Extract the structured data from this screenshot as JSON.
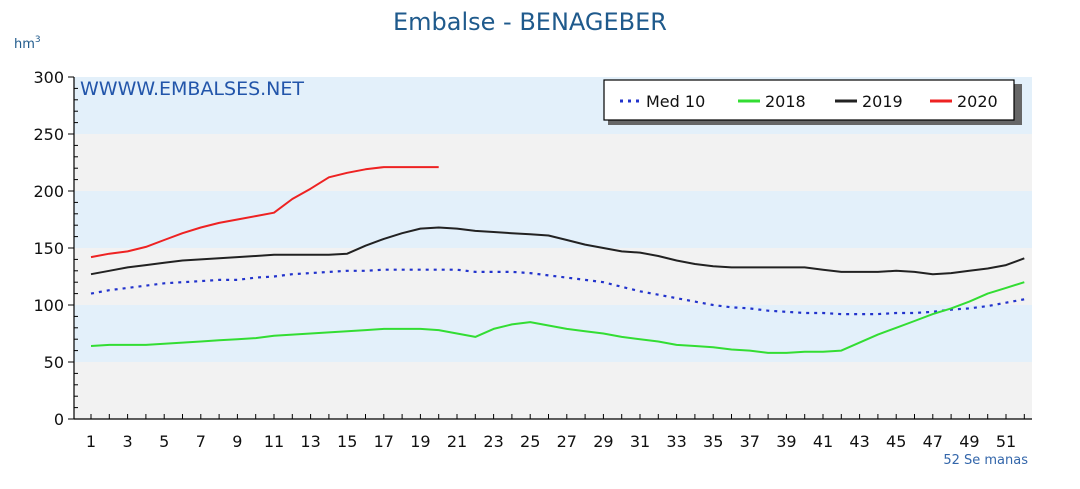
{
  "header": {
    "title": "Embalse - BENAGEBER",
    "unit_base": "hm",
    "unit_exp": "3"
  },
  "watermark": "WWWW.EMBALSES.NET",
  "weeks_label": "52 Se manas",
  "colors": {
    "band_blue": "#e3f0fa",
    "band_gray": "#f2f2f2",
    "med10": "#2233cc",
    "s2018": "#33dd33",
    "s2019": "#222222",
    "s2020": "#ee2222"
  },
  "chart_data": {
    "type": "line",
    "title": "Embalse - BENAGEBER",
    "ylabel": "hm3",
    "xlabel": "52 Se manas",
    "xlim": [
      1,
      52
    ],
    "ylim": [
      0,
      300
    ],
    "yticks": [
      0,
      50,
      100,
      150,
      200,
      250,
      300
    ],
    "xticks": [
      1,
      3,
      5,
      7,
      9,
      11,
      13,
      15,
      17,
      19,
      21,
      23,
      25,
      27,
      29,
      31,
      33,
      35,
      37,
      39,
      41,
      43,
      45,
      47,
      49,
      51
    ],
    "grid": "horizontal bands",
    "legend": {
      "position": "top-right",
      "entries": [
        "Med 10",
        "2018",
        "2019",
        "2020"
      ]
    },
    "series": [
      {
        "name": "Med 10",
        "style": "dotted",
        "color": "#2233cc",
        "x": [
          1,
          2,
          3,
          4,
          5,
          6,
          7,
          8,
          9,
          10,
          11,
          12,
          13,
          14,
          15,
          16,
          17,
          18,
          19,
          20,
          21,
          22,
          23,
          24,
          25,
          26,
          27,
          28,
          29,
          30,
          31,
          32,
          33,
          34,
          35,
          36,
          37,
          38,
          39,
          40,
          41,
          42,
          43,
          44,
          45,
          46,
          47,
          48,
          49,
          50,
          51,
          52
        ],
        "values": [
          110,
          113,
          115,
          117,
          119,
          120,
          121,
          122,
          122,
          124,
          125,
          127,
          128,
          129,
          130,
          130,
          131,
          131,
          131,
          131,
          131,
          129,
          129,
          129,
          128,
          126,
          124,
          122,
          120,
          116,
          112,
          109,
          106,
          103,
          100,
          98,
          97,
          95,
          94,
          93,
          93,
          92,
          92,
          92,
          93,
          93,
          94,
          96,
          97,
          99,
          102,
          105
        ]
      },
      {
        "name": "2018",
        "style": "solid",
        "color": "#33dd33",
        "x": [
          1,
          2,
          3,
          4,
          5,
          6,
          7,
          8,
          9,
          10,
          11,
          12,
          13,
          14,
          15,
          16,
          17,
          18,
          19,
          20,
          21,
          22,
          23,
          24,
          25,
          26,
          27,
          28,
          29,
          30,
          31,
          32,
          33,
          34,
          35,
          36,
          37,
          38,
          39,
          40,
          41,
          42,
          43,
          44,
          45,
          46,
          47,
          48,
          49,
          50,
          51,
          52
        ],
        "values": [
          64,
          65,
          65,
          65,
          66,
          67,
          68,
          69,
          70,
          71,
          73,
          74,
          75,
          76,
          77,
          78,
          79,
          79,
          79,
          78,
          75,
          72,
          79,
          83,
          85,
          82,
          79,
          77,
          75,
          72,
          70,
          68,
          65,
          64,
          63,
          61,
          60,
          58,
          58,
          59,
          59,
          60,
          67,
          74,
          80,
          86,
          92,
          97,
          103,
          110,
          115,
          120
        ]
      },
      {
        "name": "2019",
        "style": "solid",
        "color": "#222222",
        "x": [
          1,
          2,
          3,
          4,
          5,
          6,
          7,
          8,
          9,
          10,
          11,
          12,
          13,
          14,
          15,
          16,
          17,
          18,
          19,
          20,
          21,
          22,
          23,
          24,
          25,
          26,
          27,
          28,
          29,
          30,
          31,
          32,
          33,
          34,
          35,
          36,
          37,
          38,
          39,
          40,
          41,
          42,
          43,
          44,
          45,
          46,
          47,
          48,
          49,
          50,
          51,
          52
        ],
        "values": [
          127,
          130,
          133,
          135,
          137,
          139,
          140,
          141,
          142,
          143,
          144,
          144,
          144,
          144,
          145,
          152,
          158,
          163,
          167,
          168,
          167,
          165,
          164,
          163,
          162,
          161,
          157,
          153,
          150,
          147,
          146,
          143,
          139,
          136,
          134,
          133,
          133,
          133,
          133,
          133,
          131,
          129,
          129,
          129,
          130,
          129,
          127,
          128,
          130,
          132,
          135,
          141
        ]
      },
      {
        "name": "2020",
        "style": "solid",
        "color": "#ee2222",
        "x": [
          1,
          2,
          3,
          4,
          5,
          6,
          7,
          8,
          9,
          10,
          11,
          12,
          13,
          14,
          15,
          16,
          17,
          18,
          19,
          20
        ],
        "values": [
          142,
          145,
          147,
          151,
          157,
          163,
          168,
          172,
          175,
          178,
          181,
          193,
          202,
          212,
          216,
          219,
          221,
          221,
          221,
          221
        ]
      }
    ]
  }
}
